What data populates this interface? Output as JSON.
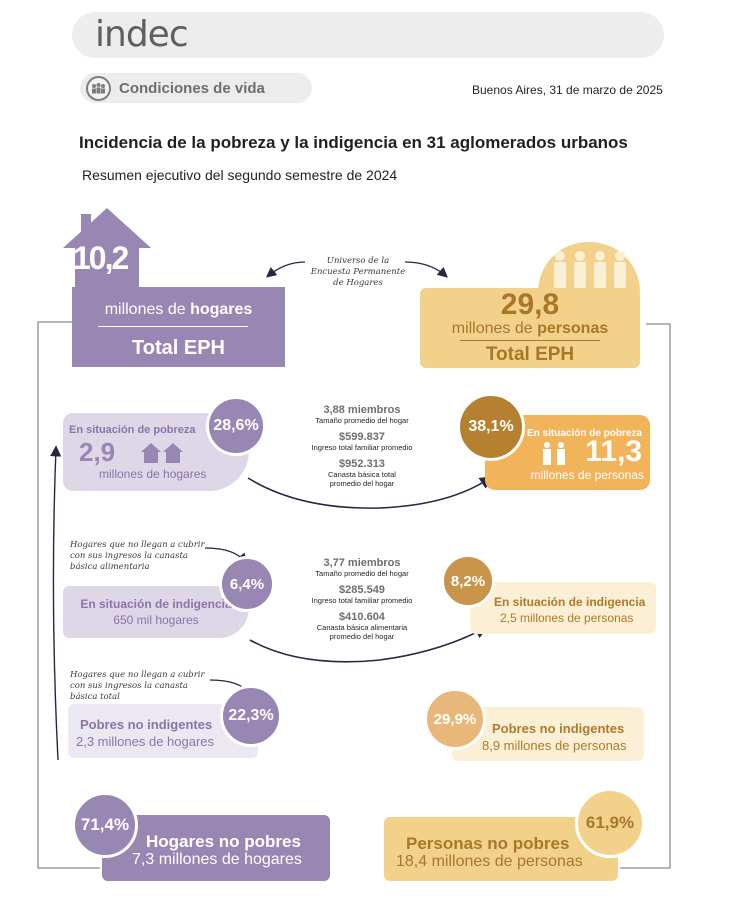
{
  "header": {
    "logo_text": "indec",
    "section_label": "Condiciones de vida",
    "date": "Buenos Aires, 31 de marzo de 2025"
  },
  "title": "Incidencia de la pobreza y la indigencia en 31 aglomerados urbanos",
  "subtitle": "Resumen ejecutivo del segundo semestre de 2024",
  "universe_note": "Universo de la Encuesta Permanente de Hogares",
  "hogares_total": {
    "value": "10,2",
    "unit": "millones de hogares",
    "unit_prefix": "millones de ",
    "unit_bold": "hogares",
    "label": "Total EPH"
  },
  "personas_total": {
    "value": "29,8",
    "unit_prefix": "millones de ",
    "unit_bold": "personas",
    "label": "Total EPH"
  },
  "pobreza_hogares": {
    "title": "En situación de pobreza",
    "value": "2,9",
    "unit": "millones de hogares",
    "pct": "28,6%"
  },
  "pobreza_personas": {
    "title": "En situación de pobreza",
    "value": "11,3",
    "unit": "millones de personas",
    "pct": "38,1%"
  },
  "pobreza_stats": {
    "miembros": "3,88 miembros",
    "miembros_label": "Tamaño promedio del hogar",
    "ingreso": "$599.837",
    "ingreso_label": "Ingreso total familiar promedio",
    "canasta": "$952.313",
    "canasta_label_1": "Canasta básica total",
    "canasta_label_2": "promedio del hogar"
  },
  "note_alimentaria": "Hogares que no llegan a cubrir con sus ingresos la canasta básica alimentaria",
  "indigencia_hogares": {
    "title": "En situación de indigencia",
    "value": "650 mil hogares",
    "pct": "6,4%"
  },
  "indigencia_personas": {
    "title": "En situación de indigencia",
    "value": "2,5 millones de personas",
    "pct": "8,2%"
  },
  "indigencia_stats": {
    "miembros": "3,77 miembros",
    "miembros_label": "Tamaño promedio del hogar",
    "ingreso": "$285.549",
    "ingreso_label": "Ingreso total familiar promedio",
    "canasta": "$410.604",
    "canasta_label_1": "Canasta básica alimentaria",
    "canasta_label_2": "promedio del hogar"
  },
  "note_total": "Hogares que no llegan a cubrir con sus ingresos la canasta básica total",
  "no_indigentes_hogares": {
    "title": "Pobres no indigentes",
    "value": "2,3 millones de hogares",
    "pct": "22,3%"
  },
  "no_indigentes_personas": {
    "title": "Pobres no indigentes",
    "value": "8,9 millones de personas",
    "pct": "29,9%"
  },
  "no_pobres_hogares": {
    "title": "Hogares no pobres",
    "value": "7,3 millones de hogares",
    "pct": "71,4%"
  },
  "no_pobres_personas": {
    "title": "Personas no pobres",
    "value": "18,4 millones de personas",
    "pct": "61,9%"
  },
  "colors": {
    "purple": "#9886b3",
    "lavender": "#ded7e8",
    "gold": "#f2d28b",
    "cream": "#fbefd6",
    "brown": "#b5802f"
  }
}
